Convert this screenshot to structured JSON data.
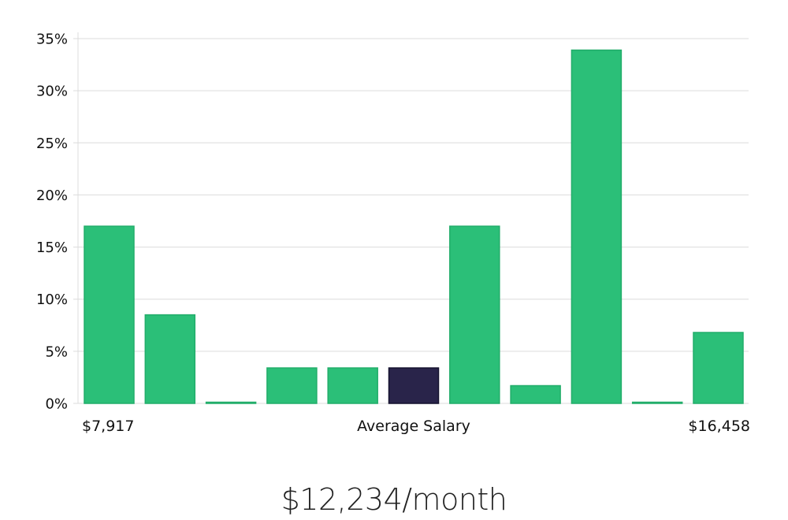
{
  "chart_data": {
    "type": "bar",
    "categories": [
      "1",
      "2",
      "3",
      "4",
      "5",
      "6",
      "7",
      "8",
      "9",
      "10",
      "11"
    ],
    "values": [
      17.0,
      8.5,
      0.0,
      3.4,
      3.4,
      3.4,
      17.0,
      1.7,
      33.9,
      0.0,
      6.8
    ],
    "highlight_index": 5,
    "ylim": [
      0,
      35
    ],
    "yticks": [
      0,
      5,
      10,
      15,
      20,
      25,
      30,
      35
    ],
    "ytick_suffix": "%",
    "grid": true,
    "x_labels": {
      "left": "$7,917",
      "center": "Average Salary",
      "right": "$16,458"
    },
    "colors": {
      "bar": "#2bbf78",
      "bar_edge": "#22ad6a",
      "highlight": "#29244a",
      "highlight_edge": "#15122e"
    }
  },
  "caption": "$12,234/month"
}
